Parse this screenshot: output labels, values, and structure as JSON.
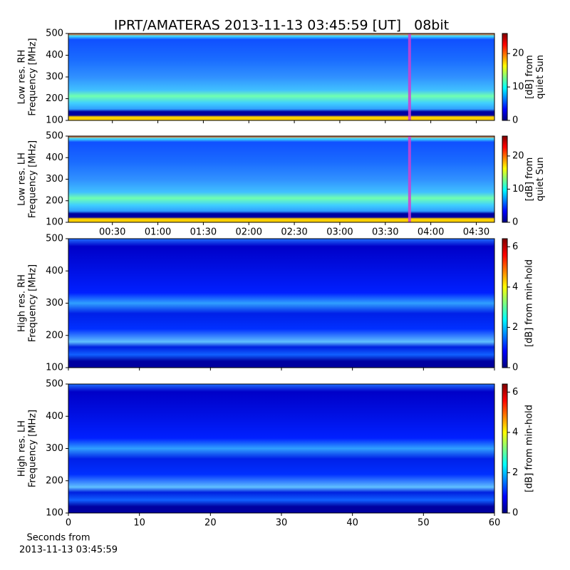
{
  "chart_data": [
    {
      "type": "heatmap",
      "title": "IPRT/AMATERAS 2013-11-13 03:45:59 [UT]   08bit",
      "ylabel": [
        "Low res. RH",
        "Frequency [MHz]"
      ],
      "ylim": [
        100,
        500
      ],
      "yticks": [
        100,
        200,
        300,
        400,
        500
      ],
      "xlim": [
        1,
        282
      ],
      "highlight_x": 226,
      "highlight_color": "#d040d0",
      "colorbar_label": [
        "[dB] from",
        "quiet Sun"
      ],
      "zlim": [
        0,
        26
      ],
      "zticks": [
        0,
        10,
        20
      ],
      "colormap": "jet"
    },
    {
      "type": "heatmap",
      "ylabel": [
        "Low res. LH",
        "Frequency [MHz]"
      ],
      "ylim": [
        100,
        500
      ],
      "yticks": [
        100,
        200,
        300,
        400,
        500
      ],
      "xlim": [
        1,
        282
      ],
      "highlight_x": 226,
      "highlight_color": "#d040d0",
      "xticks": [
        {
          "value": 30,
          "label": "00:30"
        },
        {
          "value": 60,
          "label": "01:00"
        },
        {
          "value": 90,
          "label": "01:30"
        },
        {
          "value": 120,
          "label": "02:00"
        },
        {
          "value": 150,
          "label": "02:30"
        },
        {
          "value": 180,
          "label": "03:00"
        },
        {
          "value": 210,
          "label": "03:30"
        },
        {
          "value": 240,
          "label": "04:00"
        },
        {
          "value": 270,
          "label": "04:30"
        }
      ],
      "colorbar_label": [
        "[dB] from",
        "quiet Sun"
      ],
      "zlim": [
        0,
        26
      ],
      "zticks": [
        0,
        10,
        20
      ],
      "colormap": "jet"
    },
    {
      "type": "heatmap",
      "ylabel": [
        "High res. RH",
        "Frequency [MHz]"
      ],
      "ylim": [
        100,
        500
      ],
      "yticks": [
        100,
        200,
        300,
        400,
        500
      ],
      "xlim": [
        0,
        60
      ],
      "colorbar_label": [
        "[dB] from min-hold"
      ],
      "zlim": [
        0,
        6.4
      ],
      "zticks": [
        0,
        2,
        4,
        6
      ],
      "colormap": "jet"
    },
    {
      "type": "heatmap",
      "ylabel": [
        "High res. LH",
        "Frequency [MHz]"
      ],
      "ylim": [
        100,
        500
      ],
      "yticks": [
        100,
        200,
        300,
        400,
        500
      ],
      "xlim": [
        0,
        60
      ],
      "xticks": [
        0,
        10,
        20,
        30,
        40,
        50,
        60
      ],
      "xlabel": [
        "Seconds from",
        "2013-11-13 03:45:59"
      ],
      "colorbar_label": [
        "[dB] from min-hold"
      ],
      "zlim": [
        0,
        6.4
      ],
      "zticks": [
        0,
        2,
        4,
        6
      ],
      "colormap": "jet"
    }
  ]
}
